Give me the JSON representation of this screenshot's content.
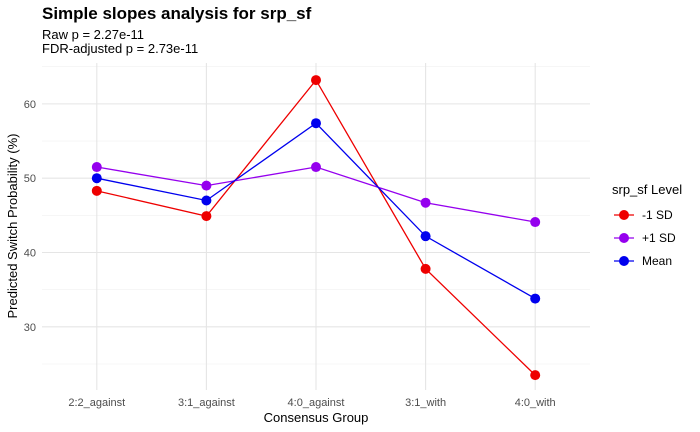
{
  "title": "Simple slopes analysis for srp_sf",
  "subtitle_lines": [
    "Raw p = 2.27e-11",
    "FDR-adjusted p = 2.73e-11"
  ],
  "chart_data": {
    "type": "line",
    "categories": [
      "2:2_against",
      "3:1_against",
      "4:0_against",
      "3:1_with",
      "4:0_with"
    ],
    "xlabel": "Consensus Group",
    "ylabel": "Predicted Switch Probability (%)",
    "ylim": [
      21.5,
      65.5
    ],
    "yticks": [
      30,
      40,
      50,
      60
    ],
    "grid": true,
    "legend_title": "srp_sf Level",
    "legend_position": "right",
    "series": [
      {
        "name": "-1 SD",
        "color": "#ee0000",
        "values": [
          48.3,
          44.9,
          63.2,
          37.8,
          23.5
        ]
      },
      {
        "name": "+1 SD",
        "color": "#9500ee",
        "values": [
          51.5,
          49.0,
          51.5,
          46.7,
          44.1
        ]
      },
      {
        "name": "Mean",
        "color": "#0000ee",
        "values": [
          50.0,
          47.0,
          57.4,
          42.2,
          33.8
        ]
      }
    ]
  }
}
